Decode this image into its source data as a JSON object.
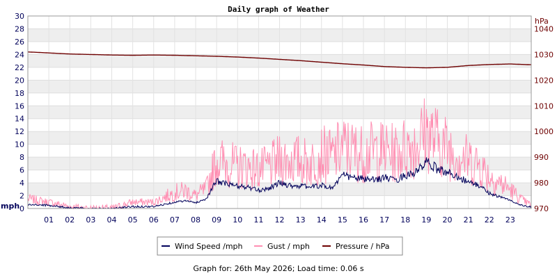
{
  "chart_data": {
    "type": "line",
    "title": "Daily graph of Weather",
    "left_axis": {
      "label": "mph",
      "range": [
        0,
        30
      ],
      "ticks": [
        "0",
        "2",
        "4",
        "6",
        "8",
        "10",
        "12",
        "14",
        "16",
        "18",
        "20",
        "22",
        "24",
        "26",
        "28",
        "30"
      ]
    },
    "right_axis": {
      "label": "hPa",
      "range": [
        970,
        1045
      ],
      "ticks": [
        "970",
        "980",
        "990",
        "1000",
        "1010",
        "1020",
        "1030",
        "1040"
      ]
    },
    "x_axis": {
      "range": [
        0,
        24
      ],
      "ticks": [
        "01",
        "02",
        "03",
        "04",
        "05",
        "06",
        "07",
        "08",
        "09",
        "10",
        "11",
        "12",
        "13",
        "14",
        "15",
        "16",
        "17",
        "18",
        "19",
        "20",
        "21",
        "22",
        "23"
      ]
    },
    "grid": "horizontal-bands",
    "legend_position": "bottom",
    "series": [
      {
        "name": "Wind Speed /mph",
        "color": "#00005a",
        "axis": "left",
        "x": [
          0,
          1,
          2,
          3,
          4,
          5,
          6,
          7,
          7.5,
          8,
          8.5,
          9,
          9.5,
          10,
          10.5,
          11,
          11.5,
          12,
          12.5,
          13,
          13.5,
          14,
          14.5,
          15,
          15.5,
          16,
          16.5,
          17,
          17.5,
          18,
          18.5,
          19,
          19.5,
          20,
          20.5,
          21,
          21.5,
          22,
          22.5,
          23,
          23.5,
          24
        ],
        "values": [
          0.6,
          0.5,
          0.1,
          0,
          0,
          0.3,
          0.3,
          1.0,
          1.2,
          0.9,
          1.5,
          4.3,
          3.8,
          3.5,
          3.3,
          2.8,
          3.2,
          4.0,
          3.6,
          3.5,
          3.4,
          3.6,
          3.2,
          5.2,
          4.8,
          4.6,
          4.4,
          4.9,
          4.3,
          5.2,
          5.6,
          7.2,
          6.2,
          5.6,
          5.0,
          4.1,
          3.6,
          2.4,
          1.8,
          1.3,
          0.5,
          0.2
        ]
      },
      {
        "name": "Gust / mph",
        "color": "#ff8eb2",
        "axis": "left",
        "x": [
          0,
          1,
          2,
          3,
          4,
          5,
          6,
          7,
          7.5,
          8,
          8.5,
          9,
          9.5,
          10,
          10.5,
          11,
          11.5,
          12,
          12.5,
          13,
          13.5,
          14,
          14.5,
          15,
          15.5,
          16,
          16.5,
          17,
          17.5,
          18,
          18.5,
          19,
          19.5,
          20,
          20.5,
          21,
          21.5,
          22,
          22.5,
          23,
          23.5,
          24
        ],
        "values": [
          1.5,
          1.0,
          0.3,
          0,
          0,
          1.0,
          1.0,
          2.5,
          2.8,
          2.0,
          3.0,
          7.5,
          7.0,
          6.5,
          6.5,
          6.0,
          6.5,
          7.5,
          7.5,
          7.5,
          7.0,
          8.5,
          8.0,
          9.5,
          9.0,
          8.5,
          9.0,
          9.0,
          8.5,
          9.5,
          10.0,
          12.0,
          10.5,
          9.5,
          8.5,
          7.5,
          7.0,
          5.0,
          4.0,
          3.0,
          1.5,
          0.5
        ]
      },
      {
        "name": "Pressure / hPa",
        "color": "#6e0000",
        "axis": "right",
        "x": [
          0,
          1,
          2,
          3,
          4,
          5,
          6,
          7,
          8,
          9,
          10,
          11,
          12,
          13,
          14,
          15,
          16,
          17,
          18,
          19,
          20,
          21,
          22,
          23,
          24
        ],
        "values": [
          1031.0,
          1030.6,
          1030.2,
          1030.0,
          1029.8,
          1029.7,
          1029.8,
          1029.7,
          1029.5,
          1029.3,
          1029.0,
          1028.6,
          1028.1,
          1027.6,
          1027.0,
          1026.4,
          1025.9,
          1025.3,
          1025.0,
          1024.8,
          1025.0,
          1025.7,
          1026.1,
          1026.3,
          1026.0
        ]
      }
    ]
  },
  "footer": "Graph for: 26th May 2026; Load time: 0.06 s"
}
